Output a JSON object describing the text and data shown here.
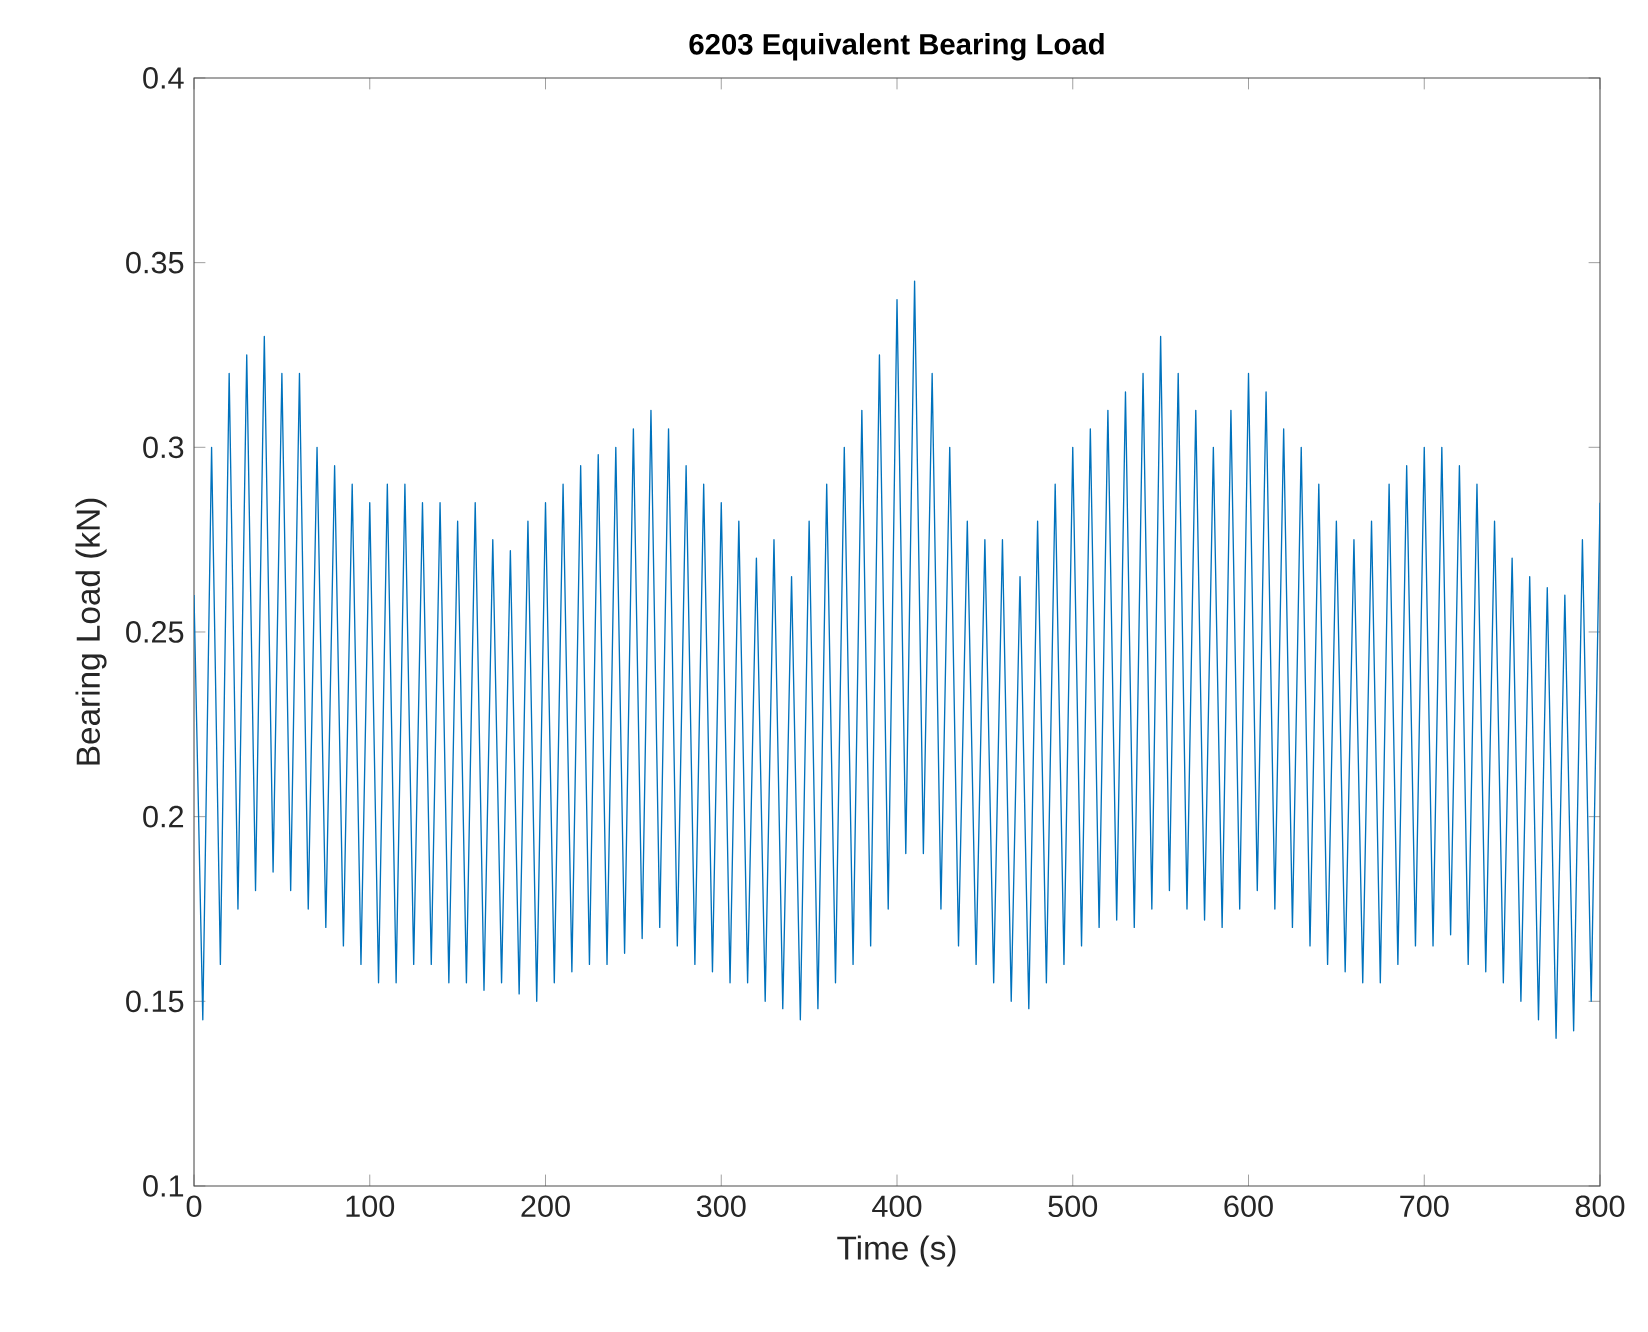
{
  "chart_data": {
    "type": "line",
    "title": "6203 Equivalent Bearing Load",
    "xlabel": "Time (s)",
    "ylabel": "Bearing Load (kN)",
    "xlim": [
      0,
      800
    ],
    "ylim": [
      0.1,
      0.4
    ],
    "xticks": [
      0,
      100,
      200,
      300,
      400,
      500,
      600,
      700,
      800
    ],
    "yticks": [
      0.1,
      0.15,
      0.2,
      0.25,
      0.3,
      0.35,
      0.4
    ],
    "x": [
      0,
      5,
      10,
      15,
      20,
      25,
      30,
      35,
      40,
      45,
      50,
      55,
      60,
      65,
      70,
      75,
      80,
      85,
      90,
      95,
      100,
      105,
      110,
      115,
      120,
      125,
      130,
      135,
      140,
      145,
      150,
      155,
      160,
      165,
      170,
      175,
      180,
      185,
      190,
      195,
      200,
      205,
      210,
      215,
      220,
      225,
      230,
      235,
      240,
      245,
      250,
      255,
      260,
      265,
      270,
      275,
      280,
      285,
      290,
      295,
      300,
      305,
      310,
      315,
      320,
      325,
      330,
      335,
      340,
      345,
      350,
      355,
      360,
      365,
      370,
      375,
      380,
      385,
      390,
      395,
      400,
      405,
      410,
      415,
      420,
      425,
      430,
      435,
      440,
      445,
      450,
      455,
      460,
      465,
      470,
      475,
      480,
      485,
      490,
      495,
      500,
      505,
      510,
      515,
      520,
      525,
      530,
      535,
      540,
      545,
      550,
      555,
      560,
      565,
      570,
      575,
      580,
      585,
      590,
      595,
      600,
      605,
      610,
      615,
      620,
      625,
      630,
      635,
      640,
      645,
      650,
      655,
      660,
      665,
      670,
      675,
      680,
      685,
      690,
      695,
      700,
      705,
      710,
      715,
      720,
      725,
      730,
      735,
      740,
      745,
      750,
      755,
      760,
      765,
      770,
      775,
      780,
      785,
      790,
      795,
      800
    ],
    "series": [
      {
        "color": "#0072bd",
        "values": [
          0.26,
          0.145,
          0.3,
          0.16,
          0.32,
          0.175,
          0.325,
          0.18,
          0.33,
          0.185,
          0.32,
          0.18,
          0.32,
          0.175,
          0.3,
          0.17,
          0.295,
          0.165,
          0.29,
          0.16,
          0.285,
          0.155,
          0.29,
          0.155,
          0.29,
          0.16,
          0.285,
          0.16,
          0.285,
          0.155,
          0.28,
          0.155,
          0.285,
          0.153,
          0.275,
          0.155,
          0.272,
          0.152,
          0.28,
          0.15,
          0.285,
          0.155,
          0.29,
          0.158,
          0.295,
          0.16,
          0.298,
          0.16,
          0.3,
          0.163,
          0.305,
          0.167,
          0.31,
          0.17,
          0.305,
          0.165,
          0.295,
          0.16,
          0.29,
          0.158,
          0.285,
          0.155,
          0.28,
          0.155,
          0.27,
          0.15,
          0.275,
          0.148,
          0.265,
          0.145,
          0.28,
          0.148,
          0.29,
          0.155,
          0.3,
          0.16,
          0.31,
          0.165,
          0.325,
          0.175,
          0.34,
          0.19,
          0.345,
          0.19,
          0.32,
          0.175,
          0.3,
          0.165,
          0.28,
          0.16,
          0.275,
          0.155,
          0.275,
          0.15,
          0.265,
          0.148,
          0.28,
          0.155,
          0.29,
          0.16,
          0.3,
          0.165,
          0.305,
          0.17,
          0.31,
          0.172,
          0.315,
          0.17,
          0.32,
          0.175,
          0.33,
          0.18,
          0.32,
          0.175,
          0.31,
          0.172,
          0.3,
          0.17,
          0.31,
          0.175,
          0.32,
          0.18,
          0.315,
          0.175,
          0.305,
          0.17,
          0.3,
          0.165,
          0.29,
          0.16,
          0.28,
          0.158,
          0.275,
          0.155,
          0.28,
          0.155,
          0.29,
          0.16,
          0.295,
          0.165,
          0.3,
          0.165,
          0.3,
          0.168,
          0.295,
          0.16,
          0.29,
          0.158,
          0.28,
          0.155,
          0.27,
          0.15,
          0.265,
          0.145,
          0.262,
          0.14,
          0.26,
          0.142,
          0.275,
          0.15,
          0.285
        ]
      }
    ]
  }
}
